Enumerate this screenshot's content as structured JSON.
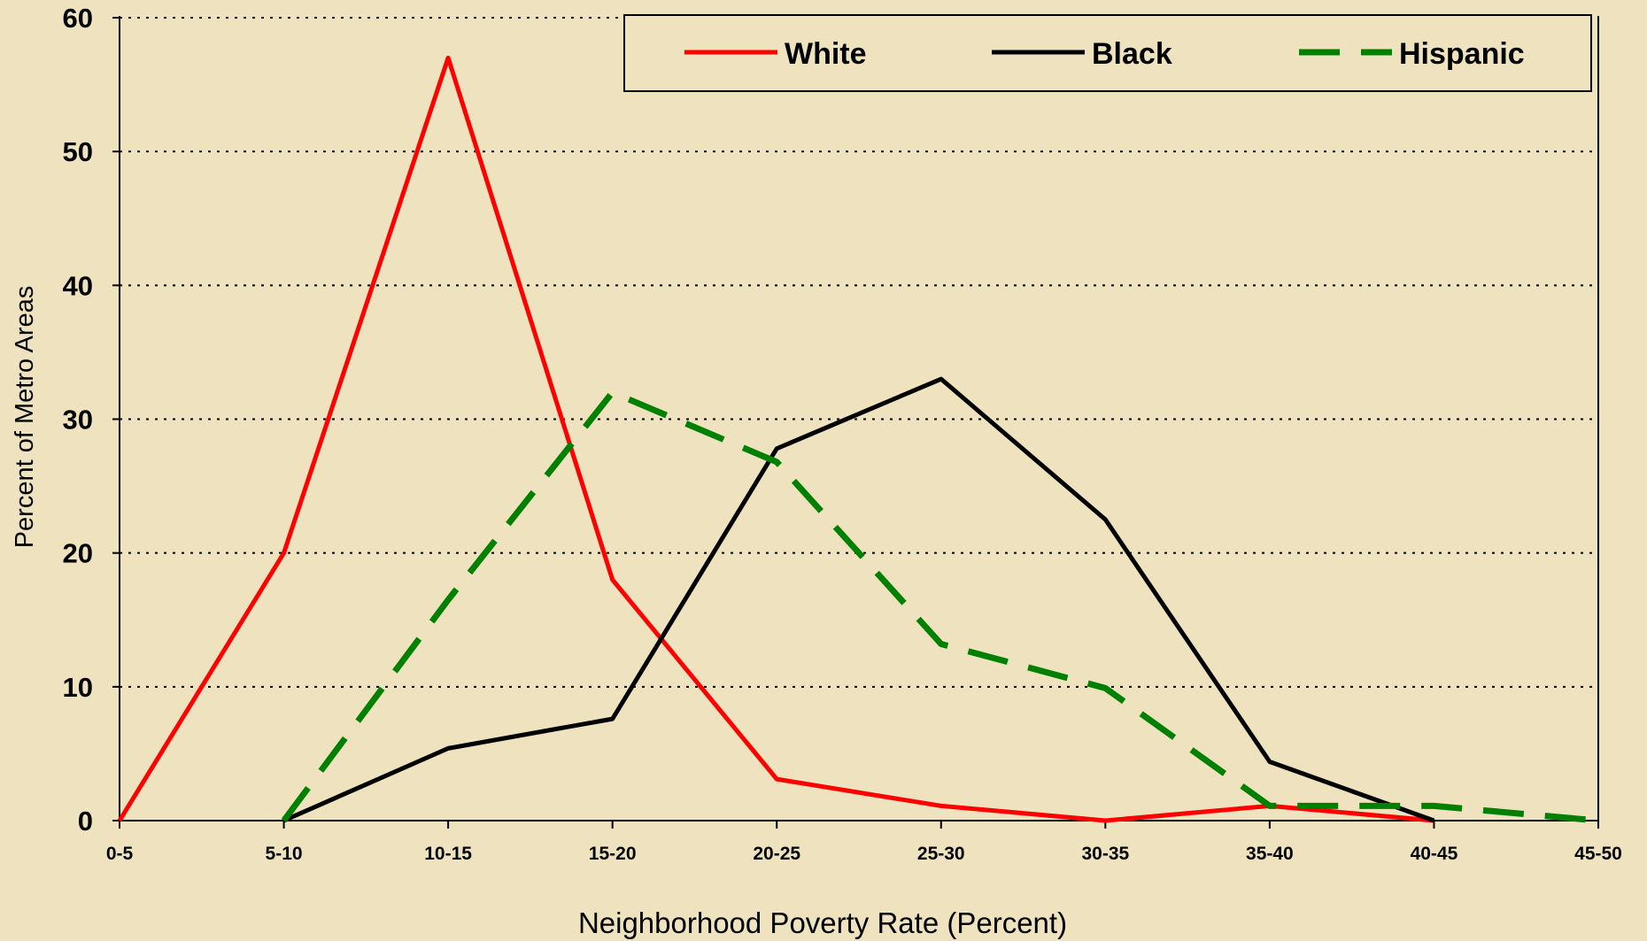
{
  "chart_data": {
    "type": "line",
    "title": "",
    "xlabel": "Neighborhood Poverty Rate (Percent)",
    "ylabel": "Percent of Metro Areas",
    "categories": [
      "0-5",
      "5-10",
      "10-15",
      "15-20",
      "20-25",
      "25-30",
      "30-35",
      "35-40",
      "40-45",
      "45-50"
    ],
    "ylim": [
      0,
      60
    ],
    "yticks": [
      0,
      10,
      20,
      30,
      40,
      50,
      60
    ],
    "grid": "horizontal dotted",
    "legend_position": "top-right",
    "series": [
      {
        "name": "White",
        "color": "#FF0000",
        "style": "solid",
        "values": [
          0,
          20,
          57,
          18,
          3.1,
          1.1,
          0,
          1.1,
          0,
          null
        ]
      },
      {
        "name": "Black",
        "color": "#000000",
        "style": "solid",
        "values": [
          null,
          0,
          5.4,
          7.6,
          27.8,
          33,
          22.5,
          4.4,
          0,
          null
        ]
      },
      {
        "name": "Hispanic",
        "color": "#008000",
        "style": "dashed",
        "values": [
          null,
          0,
          16.5,
          32,
          26.8,
          13.2,
          9.9,
          1.1,
          1.1,
          0
        ]
      }
    ]
  }
}
